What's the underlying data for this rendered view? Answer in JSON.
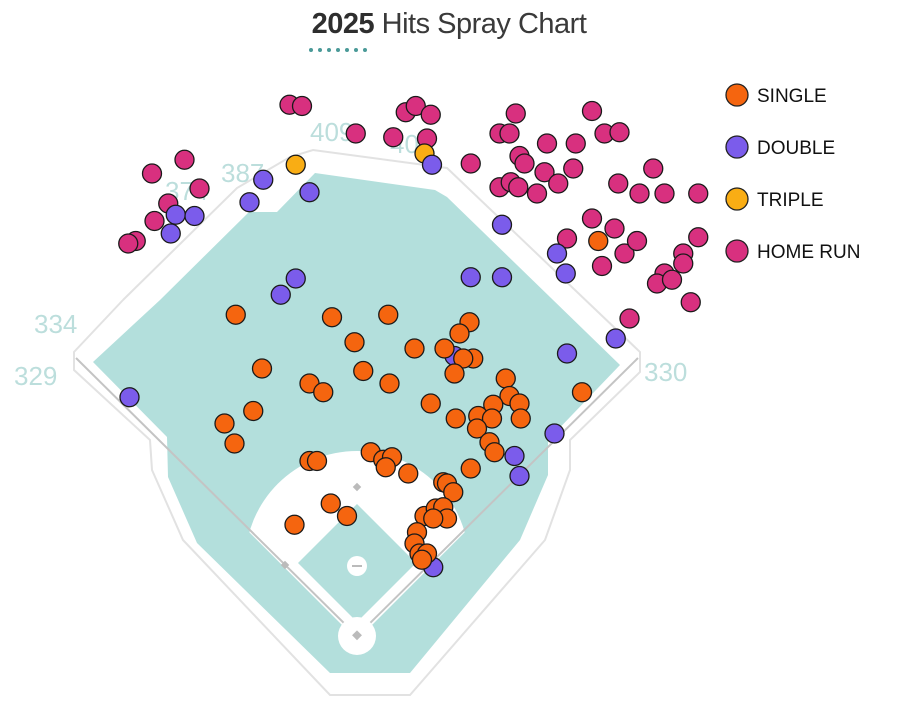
{
  "title": {
    "year": "2025",
    "text": "Hits Spray Chart"
  },
  "colors": {
    "single": "#f5650f",
    "double": "#7b5ceb",
    "triple": "#f9ad14",
    "home_run": "#d8307f",
    "field": "#b3dfdc",
    "accent": "#4a9a98"
  },
  "distance_labels": [
    "334",
    "329",
    "374",
    "387",
    "409",
    "40",
    "330"
  ],
  "chart_data": {
    "type": "scatter",
    "title": "2025 Hits Spray Chart",
    "units": "feet from home plate (x: left(-)/right(+) field, y: toward center field)",
    "legend_position": "top-right",
    "legend": [
      "SINGLE",
      "DOUBLE",
      "TRIPLE",
      "HOME RUN"
    ],
    "series": [
      {
        "name": "HOME RUN",
        "key": "home_run",
        "points": [
          [
            -54,
            425
          ],
          [
            -44,
            424
          ],
          [
            -138,
            381
          ],
          [
            -164,
            370
          ],
          [
            -126,
            358
          ],
          [
            -151,
            346
          ],
          [
            -162,
            332
          ],
          [
            -177,
            316
          ],
          [
            -183,
            314
          ],
          [
            -1,
            402
          ],
          [
            29,
            399
          ],
          [
            39,
            419
          ],
          [
            47,
            424
          ],
          [
            59,
            417
          ],
          [
            56,
            398
          ],
          [
            91,
            378
          ],
          [
            127,
            418
          ],
          [
            114,
            402
          ],
          [
            122,
            402
          ],
          [
            152,
            394
          ],
          [
            175,
            394
          ],
          [
            188,
            420
          ],
          [
            198,
            402
          ],
          [
            210,
            403
          ],
          [
            130,
            384
          ],
          [
            134,
            378
          ],
          [
            150,
            371
          ],
          [
            173,
            374
          ],
          [
            161,
            362
          ],
          [
            114,
            359
          ],
          [
            123,
            363
          ],
          [
            129,
            359
          ],
          [
            144,
            354
          ],
          [
            237,
            374
          ],
          [
            209,
            362
          ],
          [
            226,
            354
          ],
          [
            246,
            354
          ],
          [
            273,
            354
          ],
          [
            188,
            334
          ],
          [
            206,
            326
          ],
          [
            168,
            318
          ],
          [
            196,
            296
          ],
          [
            214,
            306
          ],
          [
            224,
            316
          ],
          [
            273,
            319
          ],
          [
            261,
            306
          ],
          [
            261,
            298
          ],
          [
            246,
            290
          ],
          [
            240,
            282
          ],
          [
            252,
            285
          ],
          [
            267,
            267
          ],
          [
            218,
            254
          ]
        ]
      },
      {
        "name": "TRIPLE",
        "key": "triple",
        "points": [
          [
            54,
            386
          ],
          [
            -49,
            377
          ]
        ]
      },
      {
        "name": "DOUBLE",
        "key": "double",
        "points": [
          [
            -75,
            365
          ],
          [
            -86,
            347
          ],
          [
            -38,
            355
          ],
          [
            -145,
            337
          ],
          [
            -130,
            336
          ],
          [
            -149,
            322
          ],
          [
            -49,
            286
          ],
          [
            -61,
            273
          ],
          [
            60,
            377
          ],
          [
            116,
            329
          ],
          [
            91,
            287
          ],
          [
            116,
            287
          ],
          [
            160,
            306
          ],
          [
            167,
            290
          ],
          [
            168,
            226
          ],
          [
            207,
            238
          ],
          [
            158,
            162
          ],
          [
            126,
            144
          ],
          [
            130,
            128
          ],
          [
            61,
            55
          ],
          [
            78,
            224
          ],
          [
            -182,
            191
          ]
        ]
      },
      {
        "name": "SINGLE",
        "key": "single",
        "points": [
          [
            193,
            316
          ],
          [
            25,
            257
          ],
          [
            90,
            251
          ],
          [
            82,
            242
          ],
          [
            46,
            230
          ],
          [
            70,
            230
          ],
          [
            93,
            222
          ],
          [
            85,
            222
          ],
          [
            78,
            210
          ],
          [
            5,
            212
          ],
          [
            26,
            202
          ],
          [
            59,
            186
          ],
          [
            119,
            206
          ],
          [
            122,
            192
          ],
          [
            130,
            186
          ],
          [
            131,
            174
          ],
          [
            109,
            185
          ],
          [
            97,
            176
          ],
          [
            108,
            174
          ],
          [
            96,
            166
          ],
          [
            79,
            174
          ],
          [
            106,
            155
          ],
          [
            110,
            147
          ],
          [
            180,
            195
          ],
          [
            91,
            134
          ],
          [
            11,
            147
          ],
          [
            21,
            141
          ],
          [
            28,
            143
          ],
          [
            23,
            135
          ],
          [
            41,
            130
          ],
          [
            69,
            123
          ],
          [
            72,
            122
          ],
          [
            77,
            115
          ],
          [
            54,
            96
          ],
          [
            63,
            102
          ],
          [
            69,
            103
          ],
          [
            72,
            94
          ],
          [
            61,
            94
          ],
          [
            48,
            83
          ],
          [
            46,
            74
          ],
          [
            50,
            66
          ],
          [
            56,
            66
          ],
          [
            52,
            61
          ],
          [
            -97,
            257
          ],
          [
            -20,
            255
          ],
          [
            -2,
            235
          ],
          [
            -76,
            214
          ],
          [
            -38,
            202
          ],
          [
            -27,
            195
          ],
          [
            -83,
            180
          ],
          [
            -106,
            170
          ],
          [
            -98,
            154
          ],
          [
            -38,
            140
          ],
          [
            -32,
            140
          ],
          [
            -21,
            106
          ],
          [
            -8,
            96
          ],
          [
            -50,
            89
          ]
        ]
      }
    ]
  }
}
